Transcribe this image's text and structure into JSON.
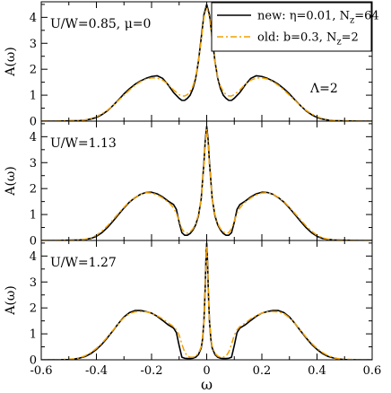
{
  "chart_data": [
    {
      "type": "line",
      "panel": "top",
      "annotation": "U/W=0.85, μ=0",
      "annotation2": "Λ=2",
      "ylabel": "A(ω)",
      "xlim": [
        -0.6,
        0.6
      ],
      "ylim": [
        0,
        4.6
      ],
      "yticks": [
        "0",
        "1",
        "2",
        "3",
        "4"
      ],
      "legend": {
        "placement": "top-right",
        "entries": [
          {
            "label": "new: η=0.01, N",
            "sub": "z",
            "tail": "=64"
          },
          {
            "label": "old: b=0.3, N",
            "sub": "z",
            "tail": "=2"
          }
        ]
      },
      "series": [
        {
          "name": "new: η=0.01, N_z=64",
          "color": "#000000",
          "x": [
            0,
            0.01,
            0.02,
            0.03,
            0.04,
            0.05,
            0.06,
            0.07,
            0.08,
            0.09,
            0.1,
            0.12,
            0.14,
            0.16,
            0.18,
            0.2,
            0.22,
            0.24,
            0.26,
            0.28,
            0.3,
            0.32,
            0.34,
            0.36,
            0.38,
            0.4,
            0.42,
            0.44,
            0.46,
            0.5,
            0.55,
            0.6
          ],
          "y": [
            4.5,
            4.1,
            3.2,
            2.3,
            1.65,
            1.25,
            1.0,
            0.88,
            0.8,
            0.8,
            0.88,
            1.1,
            1.4,
            1.65,
            1.75,
            1.72,
            1.65,
            1.55,
            1.42,
            1.25,
            1.05,
            0.82,
            0.6,
            0.4,
            0.25,
            0.14,
            0.08,
            0.04,
            0.02,
            0.01,
            0.0,
            0.0
          ]
        },
        {
          "name": "old: b=0.3, N_z=2",
          "color": "#f0a000",
          "x": [
            0,
            0.01,
            0.02,
            0.03,
            0.04,
            0.05,
            0.06,
            0.07,
            0.08,
            0.09,
            0.1,
            0.12,
            0.14,
            0.16,
            0.18,
            0.2,
            0.22,
            0.24,
            0.26,
            0.28,
            0.3,
            0.32,
            0.34,
            0.36,
            0.38,
            0.4,
            0.42,
            0.44,
            0.46,
            0.5,
            0.55,
            0.6
          ],
          "y": [
            4.4,
            4.0,
            3.1,
            2.3,
            1.7,
            1.35,
            1.15,
            1.02,
            0.97,
            0.97,
            1.02,
            1.2,
            1.42,
            1.58,
            1.66,
            1.67,
            1.62,
            1.52,
            1.38,
            1.2,
            1.0,
            0.8,
            0.6,
            0.42,
            0.28,
            0.17,
            0.1,
            0.05,
            0.03,
            0.01,
            0.0,
            0.0
          ]
        }
      ]
    },
    {
      "type": "line",
      "panel": "middle",
      "annotation": "U/W=1.13",
      "ylabel": "A(ω)",
      "xlim": [
        -0.6,
        0.6
      ],
      "ylim": [
        0,
        4.6
      ],
      "yticks": [
        "0",
        "1",
        "2",
        "3",
        "4"
      ],
      "series": [
        {
          "name": "new: η=0.01, N_z=64",
          "color": "#000000",
          "x": [
            0,
            0.005,
            0.01,
            0.02,
            0.03,
            0.04,
            0.05,
            0.06,
            0.07,
            0.08,
            0.09,
            0.1,
            0.11,
            0.12,
            0.13,
            0.14,
            0.16,
            0.18,
            0.2,
            0.22,
            0.24,
            0.26,
            0.28,
            0.3,
            0.32,
            0.34,
            0.36,
            0.38,
            0.4,
            0.42,
            0.44,
            0.46,
            0.5,
            0.55,
            0.6
          ],
          "y": [
            4.4,
            3.9,
            3.0,
            1.6,
            0.95,
            0.6,
            0.4,
            0.27,
            0.2,
            0.2,
            0.3,
            0.7,
            1.2,
            1.38,
            1.45,
            1.52,
            1.68,
            1.8,
            1.86,
            1.85,
            1.78,
            1.65,
            1.48,
            1.25,
            1.0,
            0.74,
            0.5,
            0.3,
            0.16,
            0.08,
            0.04,
            0.02,
            0.01,
            0.0,
            0.0
          ]
        },
        {
          "name": "old: b=0.3, N_z=2",
          "color": "#f0a000",
          "x": [
            0,
            0.005,
            0.01,
            0.02,
            0.03,
            0.04,
            0.05,
            0.06,
            0.07,
            0.08,
            0.09,
            0.1,
            0.11,
            0.12,
            0.13,
            0.14,
            0.16,
            0.18,
            0.2,
            0.22,
            0.24,
            0.26,
            0.28,
            0.3,
            0.32,
            0.34,
            0.36,
            0.38,
            0.4,
            0.42,
            0.44,
            0.46,
            0.5,
            0.55,
            0.6
          ],
          "y": [
            4.3,
            3.8,
            2.9,
            1.6,
            1.0,
            0.65,
            0.45,
            0.33,
            0.28,
            0.3,
            0.45,
            0.75,
            1.05,
            1.25,
            1.38,
            1.48,
            1.64,
            1.76,
            1.83,
            1.84,
            1.78,
            1.66,
            1.5,
            1.28,
            1.04,
            0.8,
            0.56,
            0.36,
            0.2,
            0.1,
            0.05,
            0.02,
            0.01,
            0.0,
            0.0
          ]
        }
      ]
    },
    {
      "type": "line",
      "panel": "bottom",
      "annotation": "U/W=1.27",
      "ylabel": "A(ω)",
      "xlabel": "ω",
      "xlim": [
        -0.6,
        0.6
      ],
      "ylim": [
        0,
        4.6
      ],
      "yticks": [
        "0",
        "1",
        "2",
        "3",
        "4"
      ],
      "xticks": [
        "-0.6",
        "-0.4",
        "-0.2",
        "0",
        "0.2",
        "0.4",
        "0.6"
      ],
      "series": [
        {
          "name": "new: η=0.01, N_z=64",
          "color": "#000000",
          "x": [
            0,
            0.003,
            0.006,
            0.01,
            0.015,
            0.02,
            0.03,
            0.04,
            0.05,
            0.06,
            0.07,
            0.08,
            0.09,
            0.1,
            0.11,
            0.12,
            0.14,
            0.16,
            0.18,
            0.2,
            0.22,
            0.24,
            0.26,
            0.28,
            0.3,
            0.32,
            0.34,
            0.36,
            0.38,
            0.4,
            0.42,
            0.44,
            0.46,
            0.48,
            0.5,
            0.55,
            0.6
          ],
          "y": [
            4.5,
            3.8,
            2.6,
            1.5,
            0.8,
            0.45,
            0.2,
            0.1,
            0.06,
            0.05,
            0.05,
            0.06,
            0.1,
            0.55,
            1.05,
            1.22,
            1.35,
            1.52,
            1.68,
            1.8,
            1.86,
            1.9,
            1.9,
            1.82,
            1.65,
            1.4,
            1.12,
            0.85,
            0.6,
            0.4,
            0.24,
            0.13,
            0.07,
            0.03,
            0.01,
            0.0,
            0.0
          ]
        },
        {
          "name": "old: b=0.3, N_z=2",
          "color": "#f0a000",
          "x": [
            0,
            0.003,
            0.006,
            0.01,
            0.015,
            0.02,
            0.03,
            0.04,
            0.05,
            0.06,
            0.07,
            0.08,
            0.09,
            0.1,
            0.11,
            0.12,
            0.14,
            0.16,
            0.18,
            0.2,
            0.22,
            0.24,
            0.26,
            0.28,
            0.3,
            0.32,
            0.34,
            0.36,
            0.38,
            0.4,
            0.42,
            0.44,
            0.46,
            0.48,
            0.5,
            0.55,
            0.6
          ],
          "y": [
            4.4,
            3.7,
            2.5,
            1.5,
            0.85,
            0.5,
            0.25,
            0.14,
            0.1,
            0.1,
            0.14,
            0.3,
            0.6,
            0.95,
            1.15,
            1.28,
            1.42,
            1.58,
            1.7,
            1.8,
            1.85,
            1.86,
            1.85,
            1.78,
            1.62,
            1.4,
            1.14,
            0.88,
            0.64,
            0.44,
            0.28,
            0.16,
            0.08,
            0.04,
            0.02,
            0.0,
            0.0
          ]
        }
      ]
    }
  ]
}
